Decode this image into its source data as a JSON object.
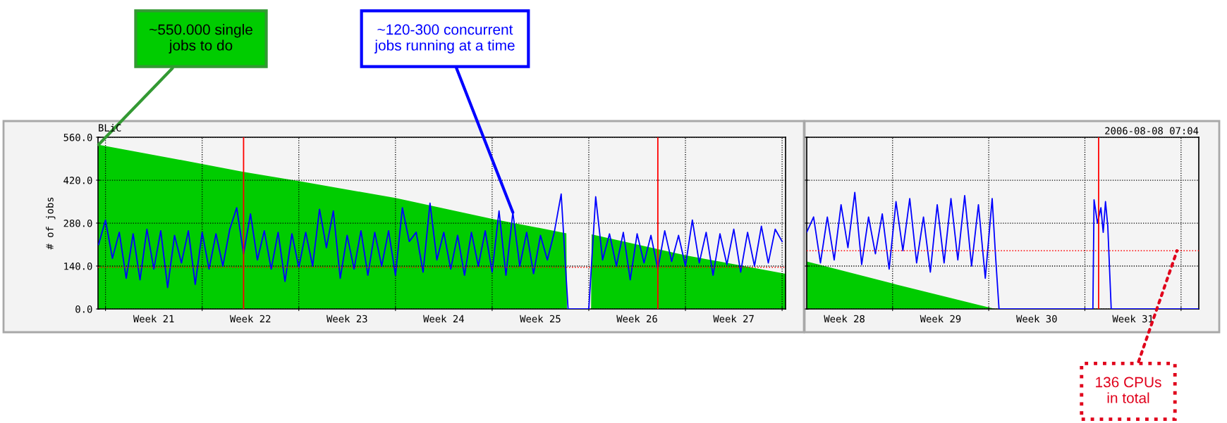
{
  "chart_data": [
    {
      "type": "line",
      "title": "BLiC",
      "ylabel": "# of jobs",
      "xlim": [
        "2006-05-21T11:00",
        "2006-07-10T06:00"
      ],
      "xticks": [
        {
          "value": "2006-05-22",
          "label": null
        },
        {
          "value": "2006-05-29",
          "label": null
        },
        {
          "value": "2006-06-05",
          "label": null
        },
        {
          "value": "2006-06-12",
          "label": null
        },
        {
          "value": "2006-06-19",
          "label": null
        },
        {
          "value": "2006-06-26",
          "label": null
        },
        {
          "value": "2006-07-03",
          "label": null
        },
        {
          "value": "2006-07-10",
          "label": null
        },
        {
          "value": "2006-05-25T12:00",
          "label": "Week 21"
        },
        {
          "value": "2006-06-01T12:00",
          "label": "Week 22"
        },
        {
          "value": "2006-06-08T12:00",
          "label": "Week 23"
        },
        {
          "value": "2006-06-15T12:00",
          "label": "Week 24"
        },
        {
          "value": "2006-06-22T12:00",
          "label": "Week 25"
        },
        {
          "value": "2006-06-29T12:00",
          "label": "Week 26"
        },
        {
          "value": "2006-07-06T12:00",
          "label": "Week 27"
        }
      ],
      "ylim": [
        0,
        560
      ],
      "yticks": [
        {
          "value": 0,
          "label": "0.0"
        },
        {
          "value": 140,
          "label": "140.0"
        },
        {
          "value": 280,
          "label": "280.0"
        },
        {
          "value": 420,
          "label": "420.0"
        },
        {
          "value": 560,
          "label": "560.0"
        }
      ],
      "grid": true,
      "series": [
        {
          "type": "area",
          "color": "#00cc00",
          "x": [
            "2006-05-21T11:00",
            "2006-05-29",
            "2006-06-01",
            "2006-06-05",
            "2006-06-12",
            "2006-06-19",
            "2006-06-24T09:00",
            "2006-06-24T10:00",
            "2006-06-26T04:00",
            "2006-06-26T05:00",
            "2006-07-03",
            "2006-07-10T06:00"
          ],
          "values": [
            536,
            473,
            447,
            417,
            362,
            294,
            247,
            0,
            0,
            243,
            175,
            115
          ]
        },
        {
          "color": "#0000ff",
          "x": [
            "2006-05-21T12:00",
            "2006-05-22T00:00",
            "2006-05-22T12:00",
            "2006-05-23T00:00",
            "2006-05-23T12:00",
            "2006-05-24T00:00",
            "2006-05-24T12:00",
            "2006-05-25T00:00",
            "2006-05-25T12:00",
            "2006-05-26T00:00",
            "2006-05-26T12:00",
            "2006-05-27T00:00",
            "2006-05-27T12:00",
            "2006-05-28T00:00",
            "2006-05-28T12:00",
            "2006-05-29T00:00",
            "2006-05-29T12:00",
            "2006-05-30T00:00",
            "2006-05-30T12:00",
            "2006-05-31T00:00",
            "2006-05-31T12:00",
            "2006-06-01T00:00",
            "2006-06-01T12:00",
            "2006-06-02T00:00",
            "2006-06-02T12:00",
            "2006-06-03T00:00",
            "2006-06-03T12:00",
            "2006-06-04T00:00",
            "2006-06-04T12:00",
            "2006-06-05T00:00",
            "2006-06-05T12:00",
            "2006-06-06T00:00",
            "2006-06-06T12:00",
            "2006-06-07T00:00",
            "2006-06-07T12:00",
            "2006-06-08T00:00",
            "2006-06-08T12:00",
            "2006-06-09T00:00",
            "2006-06-09T12:00",
            "2006-06-10T00:00",
            "2006-06-10T12:00",
            "2006-06-11T00:00",
            "2006-06-11T12:00",
            "2006-06-12T00:00",
            "2006-06-12T12:00",
            "2006-06-13T00:00",
            "2006-06-13T12:00",
            "2006-06-14T00:00",
            "2006-06-14T12:00",
            "2006-06-15T00:00",
            "2006-06-15T12:00",
            "2006-06-16T00:00",
            "2006-06-16T12:00",
            "2006-06-17T00:00",
            "2006-06-17T12:00",
            "2006-06-18T00:00",
            "2006-06-18T12:00",
            "2006-06-19T00:00",
            "2006-06-19T12:00",
            "2006-06-20T00:00",
            "2006-06-20T12:00",
            "2006-06-21T00:00",
            "2006-06-21T12:00",
            "2006-06-22T00:00",
            "2006-06-22T12:00",
            "2006-06-23T00:00",
            "2006-06-23T12:00",
            "2006-06-24T00:00",
            "2006-06-24T12:00",
            "2006-06-25T00:00",
            "2006-06-25T12:00",
            "2006-06-26T00:00",
            "2006-06-26T12:00",
            "2006-06-27T00:00",
            "2006-06-27T12:00",
            "2006-06-28T00:00",
            "2006-06-28T12:00",
            "2006-06-29T00:00",
            "2006-06-29T12:00",
            "2006-06-30T00:00",
            "2006-06-30T12:00",
            "2006-07-01T00:00",
            "2006-07-01T12:00",
            "2006-07-02T00:00",
            "2006-07-02T12:00",
            "2006-07-03T00:00",
            "2006-07-03T12:00",
            "2006-07-04T00:00",
            "2006-07-04T12:00",
            "2006-07-05T00:00",
            "2006-07-05T12:00",
            "2006-07-06T00:00",
            "2006-07-06T12:00",
            "2006-07-07T00:00",
            "2006-07-07T12:00",
            "2006-07-08T00:00",
            "2006-07-08T12:00",
            "2006-07-09T00:00",
            "2006-07-09T12:00",
            "2006-07-10T00:00"
          ],
          "values": [
            210,
            290,
            165,
            250,
            100,
            245,
            95,
            260,
            130,
            255,
            70,
            240,
            150,
            255,
            80,
            250,
            130,
            245,
            140,
            260,
            330,
            180,
            310,
            160,
            255,
            130,
            250,
            90,
            245,
            135,
            250,
            140,
            325,
            200,
            320,
            100,
            240,
            130,
            255,
            110,
            250,
            140,
            255,
            110,
            330,
            220,
            250,
            120,
            345,
            160,
            250,
            130,
            240,
            110,
            250,
            140,
            255,
            120,
            320,
            110,
            315,
            140,
            250,
            115,
            240,
            160,
            250,
            375,
            0,
            0,
            0,
            0,
            366,
            160,
            245,
            140,
            250,
            95,
            245,
            150,
            240,
            130,
            255,
            155,
            240,
            140,
            290,
            150,
            250,
            110,
            245,
            145,
            260,
            120,
            250,
            140,
            270,
            150,
            260,
            220
          ]
        }
      ],
      "ref_lines": [
        {
          "axis": "x",
          "value": "2006-06-01",
          "color": "#ff0000",
          "line_style": "solid"
        },
        {
          "axis": "x",
          "value": "2006-07-01",
          "color": "#ff0000",
          "line_style": "solid"
        },
        {
          "axis": "y",
          "value": 136,
          "color": "#ff0000",
          "line_style": "dotted"
        }
      ],
      "annotations": [
        {
          "text": "~550.000 single jobs to do",
          "x": "2006-05-21T12:00",
          "y": 536
        },
        {
          "text": "~120-300 concurrent jobs running at a time",
          "x": "2006-06-20T12:00",
          "y": 315
        }
      ]
    },
    {
      "type": "line",
      "subtitle": "2006-08-08 07:04",
      "tick_labels": "x",
      "xlim": [
        "2006-07-10T18:00",
        "2006-08-08T07:00"
      ],
      "xticks": [
        {
          "value": "2006-07-17",
          "label": null
        },
        {
          "value": "2006-07-24",
          "label": null
        },
        {
          "value": "2006-07-31",
          "label": null
        },
        {
          "value": "2006-08-07",
          "label": null
        },
        {
          "value": "2006-07-13T12:00",
          "label": "Week 28"
        },
        {
          "value": "2006-07-20T12:00",
          "label": "Week 29"
        },
        {
          "value": "2006-07-27T12:00",
          "label": "Week 30"
        },
        {
          "value": "2006-08-03T12:00",
          "label": "Week 31"
        }
      ],
      "ylim": [
        0,
        560
      ],
      "yticks": [
        {
          "value": 0,
          "label": null
        },
        {
          "value": 140,
          "label": null
        },
        {
          "value": 280,
          "label": null
        },
        {
          "value": 420,
          "label": null
        },
        {
          "value": 560,
          "label": null
        }
      ],
      "grid": true,
      "series": [
        {
          "type": "area",
          "color": "#00cc00",
          "x": [
            "2006-07-10T18:00",
            "2006-07-17",
            "2006-07-24",
            "2006-07-24T12:00",
            "2006-08-08T07:00"
          ],
          "values": [
            155,
            83,
            5,
            0,
            0
          ]
        },
        {
          "color": "#0000ff",
          "x": [
            "2006-07-10T18:00",
            "2006-07-11T06:00",
            "2006-07-11T18:00",
            "2006-07-12T06:00",
            "2006-07-12T18:00",
            "2006-07-13T06:00",
            "2006-07-13T18:00",
            "2006-07-14T06:00",
            "2006-07-14T18:00",
            "2006-07-15T06:00",
            "2006-07-15T18:00",
            "2006-07-16T06:00",
            "2006-07-16T18:00",
            "2006-07-17T06:00",
            "2006-07-17T18:00",
            "2006-07-18T06:00",
            "2006-07-18T18:00",
            "2006-07-19T06:00",
            "2006-07-19T18:00",
            "2006-07-20T06:00",
            "2006-07-20T18:00",
            "2006-07-21T06:00",
            "2006-07-21T18:00",
            "2006-07-22T06:00",
            "2006-07-22T18:00",
            "2006-07-23T06:00",
            "2006-07-23T18:00",
            "2006-07-24T06:00",
            "2006-07-24T12:00",
            "2006-07-24T18:00",
            "2006-07-31T14:00",
            "2006-07-31T16:00",
            "2006-07-31T22:00",
            "2006-08-01T04:00",
            "2006-08-01T08:00",
            "2006-08-01T12:00",
            "2006-08-01T16:00",
            "2006-08-01T22:00",
            "2006-08-08T07:00"
          ],
          "values": [
            250,
            300,
            150,
            300,
            160,
            340,
            200,
            380,
            145,
            300,
            180,
            310,
            130,
            350,
            190,
            360,
            150,
            300,
            120,
            340,
            150,
            360,
            160,
            370,
            140,
            340,
            100,
            360,
            170,
            0,
            0,
            356,
            280,
            330,
            250,
            350,
            270,
            0,
            0
          ]
        }
      ],
      "ref_lines": [
        {
          "axis": "x",
          "value": "2006-08-01",
          "color": "#ff0000",
          "line_style": "solid"
        },
        {
          "axis": "y",
          "value": 190,
          "color": "#ff0000",
          "line_style": "dotted"
        }
      ],
      "annotations": [
        {
          "text": "136 CPUs in total",
          "x": "2006-08-06T17:00",
          "y": 190
        }
      ]
    }
  ]
}
